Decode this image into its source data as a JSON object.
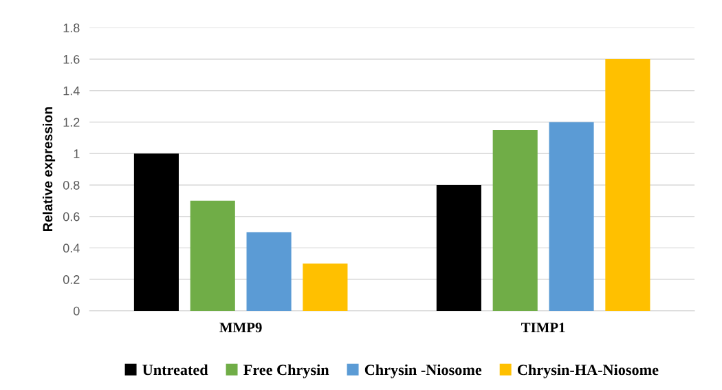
{
  "chart_data": {
    "type": "bar",
    "ylabel": "Relative expression",
    "categories": [
      "MMP9",
      "TIMP1"
    ],
    "series": [
      {
        "name": "Untreated",
        "color": "#000000",
        "values": [
          1.0,
          0.8
        ]
      },
      {
        "name": "Free Chrysin",
        "color": "#70ad47",
        "values": [
          0.7,
          1.15
        ]
      },
      {
        "name": "Chrysin -Niosome",
        "color": "#5b9bd5",
        "values": [
          0.5,
          1.2
        ]
      },
      {
        "name": "Chrysin-HA-Niosome",
        "color": "#ffc000",
        "values": [
          0.3,
          1.6
        ]
      }
    ],
    "ylim": [
      0,
      1.8
    ],
    "yticks": [
      0,
      {
        "value": 0.2,
        "label": "0.2"
      },
      {
        "value": 0.4,
        "label": "0.4"
      },
      {
        "value": 0.6,
        "label": "0.6"
      },
      {
        "value": 0.8,
        "label": "0.8"
      },
      1,
      {
        "value": 1.2,
        "label": "1.2"
      },
      {
        "value": 1.4,
        "label": "1.4"
      },
      {
        "value": 1.6,
        "label": "1.6"
      },
      {
        "value": 1.8,
        "label": "1.8"
      }
    ],
    "grid": "y",
    "legend": "bottom"
  }
}
